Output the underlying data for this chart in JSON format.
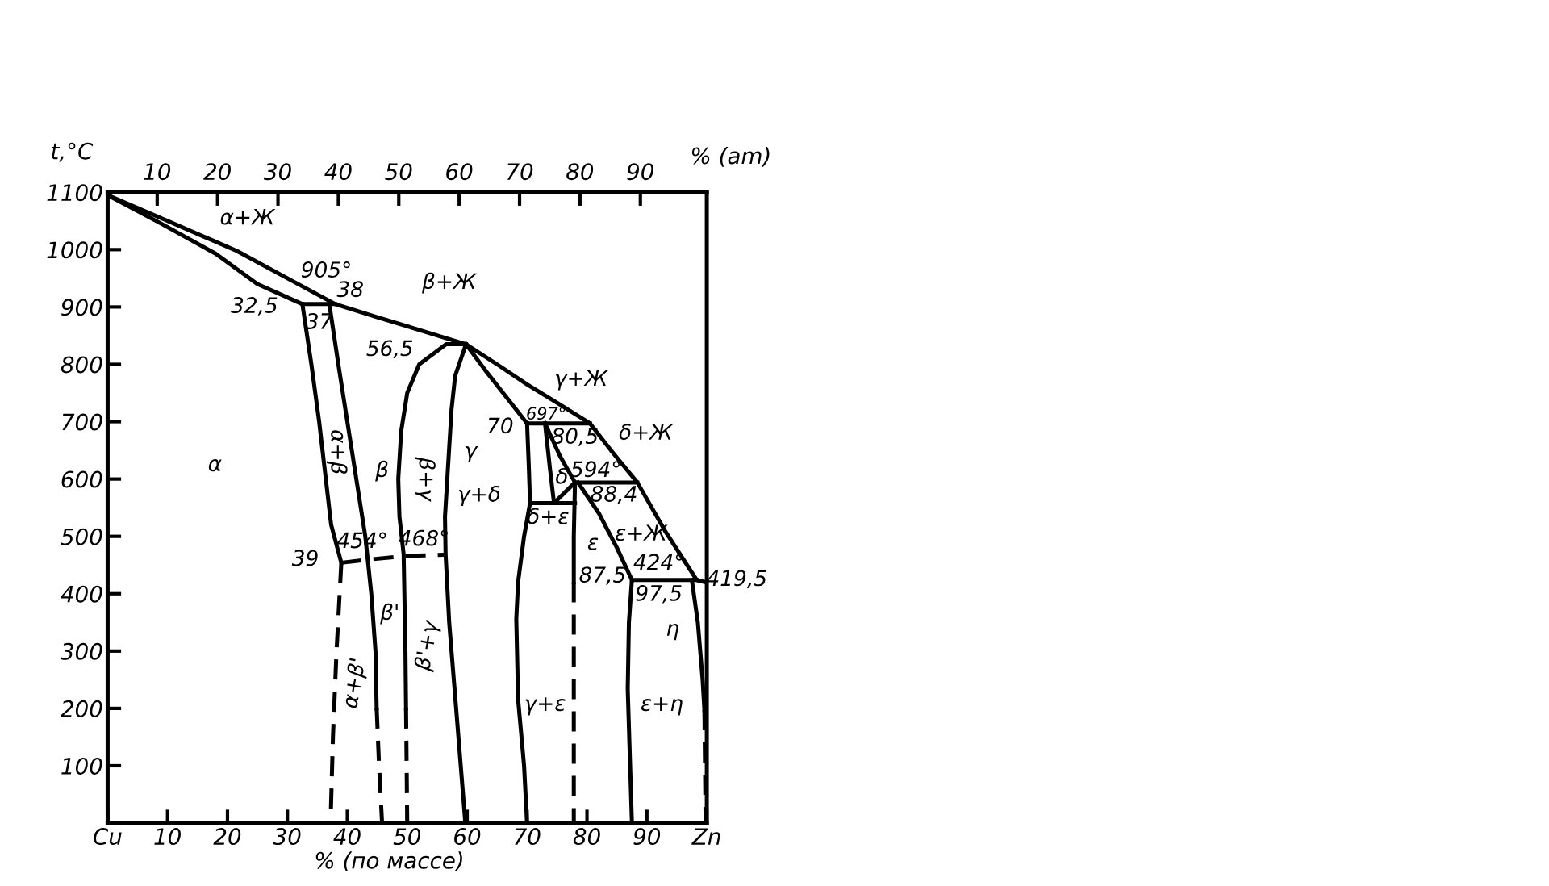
{
  "chart_data": {
    "type": "line",
    "xlabel": "% (по массе)",
    "ylabel": "t,°C",
    "x2label": "% (am)",
    "xlim": [
      0,
      100
    ],
    "ylim": [
      0,
      1100
    ],
    "xticks": [
      {
        "value": 0,
        "label": "Cu"
      },
      10,
      20,
      30,
      40,
      50,
      60,
      70,
      80,
      90,
      {
        "value": 100,
        "label": "Zn"
      }
    ],
    "yticks": [
      100,
      200,
      300,
      400,
      500,
      600,
      700,
      800,
      900,
      1000,
      1100
    ],
    "x2lim": [
      1.8,
      101
    ],
    "x2ticks": [
      10,
      20,
      30,
      40,
      50,
      60,
      70,
      80,
      90
    ],
    "grid": false,
    "legend": false,
    "marker": "none",
    "series": [
      {
        "x": [
          0,
          10,
          21.5,
          30,
          38,
          45,
          52,
          59.8,
          65,
          70,
          75,
          80.5,
          84,
          88.4,
          93,
          98.3,
          100
        ],
        "values": [
          1095,
          1050,
          998,
          950,
          905,
          882,
          860,
          835,
          800,
          765,
          733,
          697,
          650,
          594,
          510,
          424,
          419.5
        ],
        "color": "#000000",
        "line_style": "solid"
      },
      {
        "x": [
          0,
          9,
          18,
          25,
          32.5,
          38
        ],
        "values": [
          1095,
          1045,
          993,
          940,
          905,
          905
        ],
        "color": "#000000",
        "line_style": "solid"
      },
      {
        "x": [
          32.5,
          34,
          35.3,
          36.3,
          37.3,
          39
        ],
        "values": [
          905,
          800,
          700,
          610,
          520,
          454
        ],
        "color": "#000000",
        "line_style": "solid"
      },
      {
        "x": [
          39,
          38.2,
          37.6,
          37.2
        ],
        "values": [
          454,
          300,
          150,
          0
        ],
        "color": "#000000",
        "line_style": "dashed"
      },
      {
        "x": [
          37,
          38.5,
          40,
          41.5,
          43,
          44,
          44.7,
          44.9
        ],
        "values": [
          905,
          800,
          700,
          600,
          500,
          400,
          300,
          200
        ],
        "color": "#000000",
        "line_style": "solid"
      },
      {
        "x": [
          44.9,
          45.3,
          45.8
        ],
        "values": [
          200,
          100,
          0
        ],
        "color": "#000000",
        "line_style": "dashed"
      },
      {
        "x": [
          39,
          43,
          50,
          56.1
        ],
        "values": [
          454,
          459,
          466,
          468
        ],
        "color": "#000000",
        "line_style": "dashed"
      },
      {
        "x": [
          49.8,
          49.7,
          49.4,
          48.7,
          48.5,
          49,
          50,
          52,
          56.5,
          59.8
        ],
        "values": [
          200,
          300,
          469,
          534,
          600,
          684,
          750,
          800,
          835,
          835
        ],
        "color": "#000000",
        "line_style": "solid"
      },
      {
        "x": [
          49.8,
          50
        ],
        "values": [
          200,
          0
        ],
        "color": "#000000",
        "line_style": "dashed"
      },
      {
        "x": [
          59.8,
          58,
          57.4,
          56.8,
          56.3,
          56.4,
          57,
          57.9,
          59.7
        ],
        "values": [
          835,
          780,
          722,
          620,
          534,
          469,
          350,
          234,
          0
        ],
        "color": "#000000",
        "line_style": "solid"
      },
      {
        "x": [
          59.8,
          63,
          66,
          70,
          80.5
        ],
        "values": [
          835,
          790,
          750,
          697,
          697
        ],
        "color": "#000000",
        "line_style": "solid"
      },
      {
        "x": [
          70,
          70.3,
          70.5,
          69.5,
          68.5,
          68.2,
          68.5,
          69.5,
          70
        ],
        "values": [
          697,
          620,
          558,
          500,
          420,
          356,
          216,
          100,
          0
        ],
        "color": "#000000",
        "line_style": "solid"
      },
      {
        "x": [
          73,
          73.8,
          74.5,
          78
        ],
        "values": [
          697,
          620,
          558,
          594
        ],
        "color": "#000000",
        "line_style": "solid"
      },
      {
        "x": [
          73,
          75.5,
          78,
          88.4
        ],
        "values": [
          697,
          640,
          594,
          594
        ],
        "color": "#000000",
        "line_style": "solid"
      },
      {
        "x": [
          70.5,
          78
        ],
        "values": [
          558,
          558
        ],
        "color": "#000000",
        "line_style": "solid"
      },
      {
        "x": [
          78,
          77.8,
          77.8
        ],
        "values": [
          594,
          500,
          420
        ],
        "color": "#000000",
        "line_style": "solid"
      },
      {
        "x": [
          77.8,
          77.8
        ],
        "values": [
          420,
          0
        ],
        "color": "#000000",
        "line_style": "dashed"
      },
      {
        "x": [
          78.5,
          82,
          85,
          87.5,
          87,
          86.8,
          87.5
        ],
        "values": [
          594,
          540,
          480,
          424,
          350,
          234,
          0
        ],
        "color": "#000000",
        "line_style": "solid"
      },
      {
        "x": [
          87.5,
          98.3
        ],
        "values": [
          424,
          424
        ],
        "color": "#000000",
        "line_style": "solid"
      },
      {
        "x": [
          97.5,
          98.5,
          99.3,
          99.6
        ],
        "values": [
          424,
          350,
          250,
          197
        ],
        "color": "#000000",
        "line_style": "solid"
      },
      {
        "x": [
          99.6,
          99.8
        ],
        "values": [
          197,
          0
        ],
        "color": "#000000",
        "line_style": "dashed"
      }
    ],
    "annotations": [
      "α+Ж",
      "905°",
      "38",
      "32,5",
      "37",
      "β+Ж",
      "56,5",
      "α+β",
      "α",
      "β",
      "β+γ",
      "γ",
      "γ+Ж",
      "697°",
      "70",
      "80,5",
      "δ+Ж",
      "594°",
      "δ",
      "γ+δ",
      "88,4",
      "δ+ε",
      "ε+Ж",
      "ε",
      "424°",
      "87,5",
      "97,5",
      "419,5",
      "η",
      "ε+η",
      "γ+ε",
      "β'+γ",
      "β'",
      "α+β'",
      "39",
      "454°",
      "468°"
    ]
  }
}
